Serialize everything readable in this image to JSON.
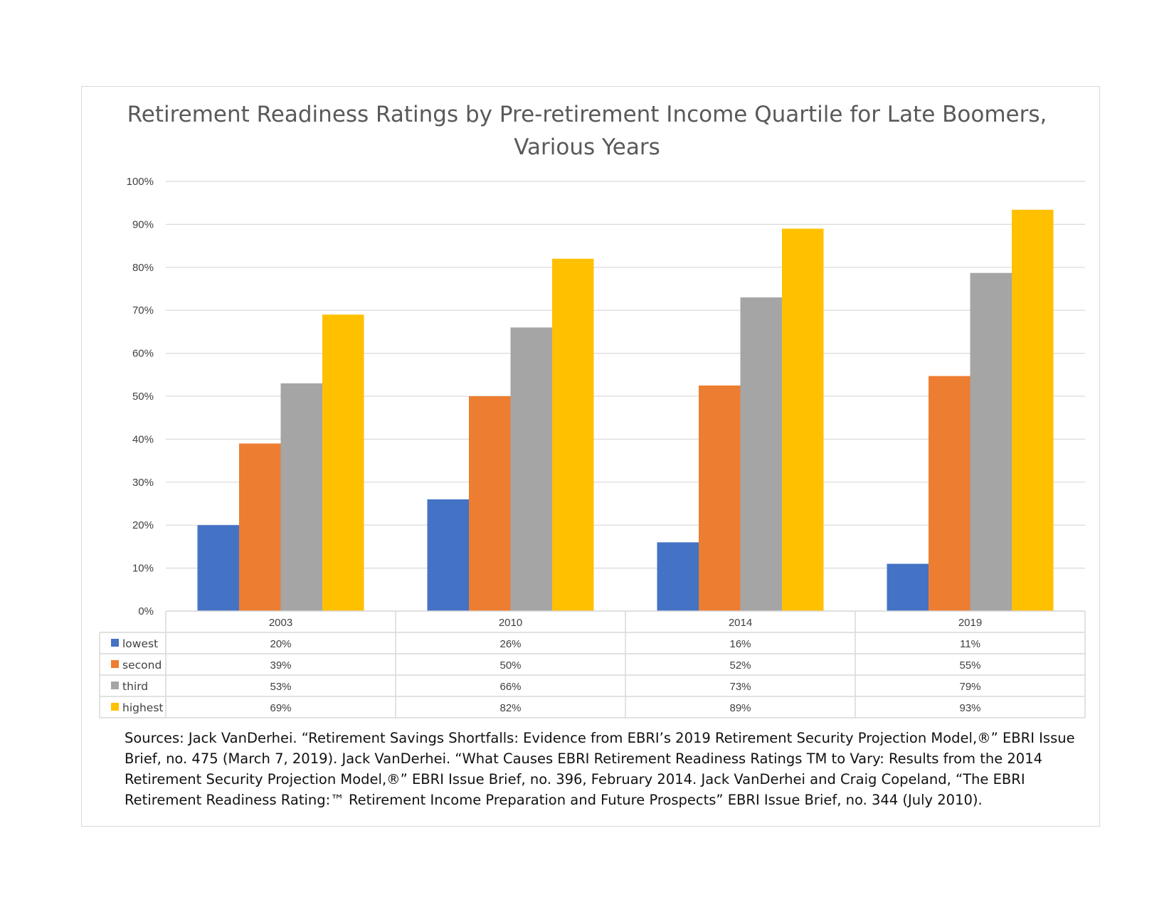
{
  "title": "Retirement Readiness Ratings by Pre-retirement Income Quartile for Late Boomers, Various Years",
  "sources": "Sources: Jack VanDerhei. “Retirement Savings Shortfalls: Evidence from EBRI’s 2019 Retirement Security Projection Model,®” EBRI Issue Brief, no. 475 (March 7, 2019). Jack VanDerhei. “What Causes EBRI Retirement Readiness Ratings TM to Vary: Results from the 2014 Retirement Security Projection Model,®” EBRI Issue Brief, no. 396, February 2014. Jack VanDerhei and Craig Copeland, “The EBRI Retirement Readiness Rating:™ Retirement Income Preparation and Future Prospects” EBRI Issue Brief, no. 344 (July 2010).",
  "chart_data": {
    "type": "bar",
    "title": "Retirement Readiness Ratings by Pre-retirement Income Quartile for Late Boomers, Various Years",
    "categories": [
      "2003",
      "2010",
      "2014",
      "2019"
    ],
    "series": [
      {
        "name": "lowest",
        "color": "#4472c4",
        "values": [
          20,
          26,
          16,
          11
        ],
        "labels": [
          "20%",
          "26%",
          "16%",
          "11%"
        ]
      },
      {
        "name": "second",
        "color": "#ed7d31",
        "values": [
          39,
          50,
          52.5,
          54.7
        ],
        "labels": [
          "39%",
          "50%",
          "52%",
          "55%"
        ]
      },
      {
        "name": "third",
        "color": "#a5a5a5",
        "values": [
          53,
          66,
          73,
          78.7
        ],
        "labels": [
          "53%",
          "66%",
          "73%",
          "79%"
        ]
      },
      {
        "name": "highest",
        "color": "#ffc000",
        "values": [
          69,
          82,
          89,
          93.4
        ],
        "labels": [
          "69%",
          "82%",
          "89%",
          "93%"
        ]
      }
    ],
    "ylim": [
      0,
      100
    ],
    "yticks": [
      "0%",
      "10%",
      "20%",
      "30%",
      "40%",
      "50%",
      "60%",
      "70%",
      "80%",
      "90%",
      "100%"
    ],
    "grid": true,
    "legend": "data table",
    "data_table": true
  }
}
